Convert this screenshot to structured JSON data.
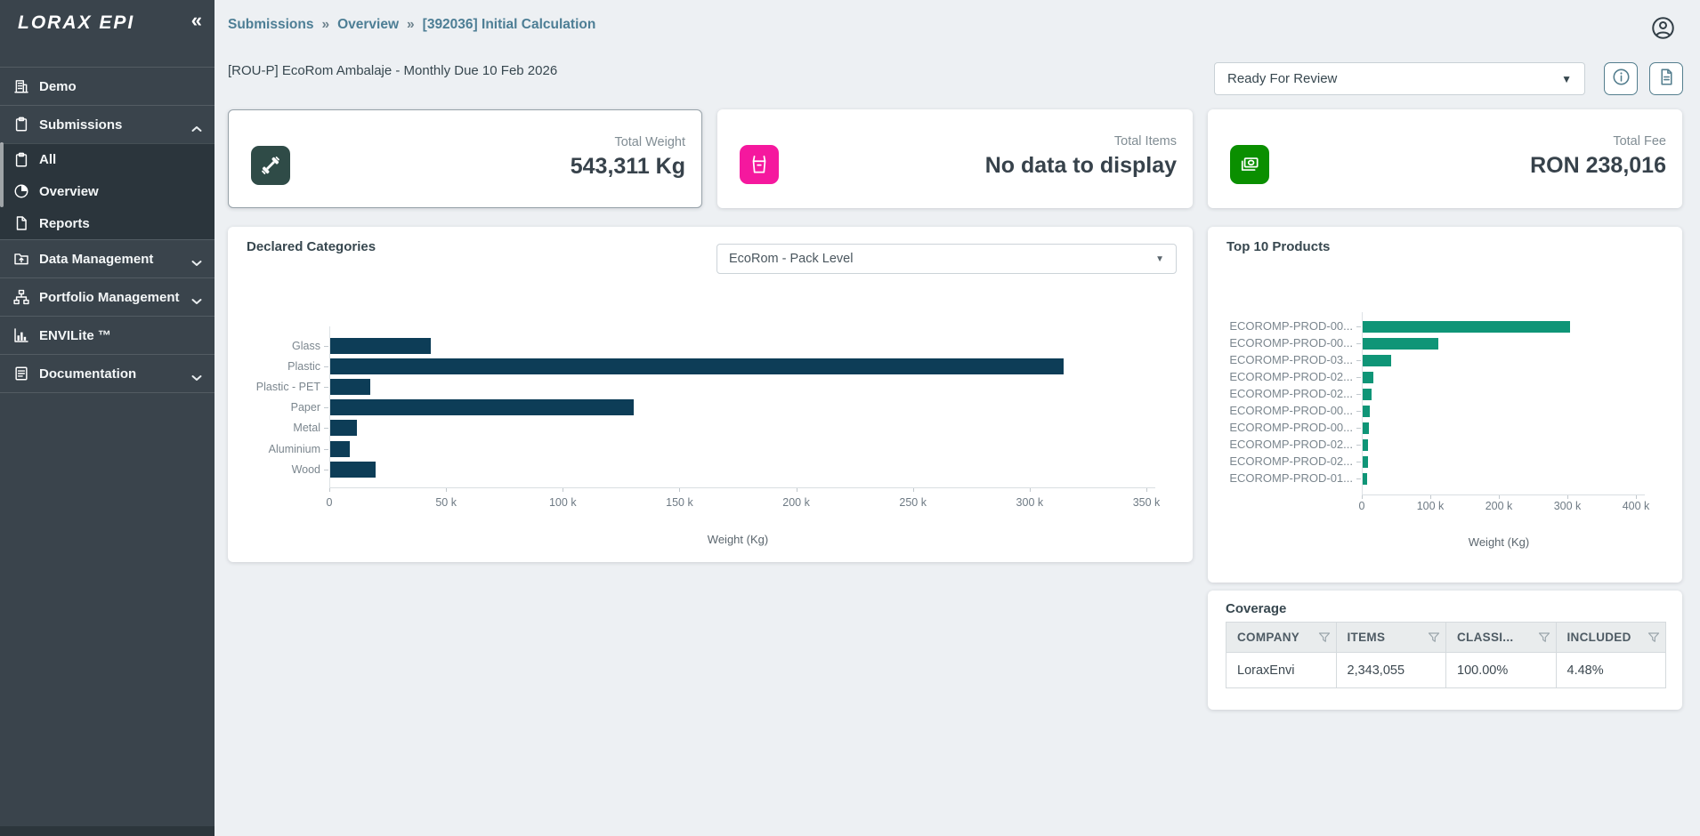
{
  "colors": {
    "page_bg": "#edf0f3",
    "sidebar_bg": "#3a444c",
    "sidebar_submenu_bg": "#2b353c",
    "breadcrumb_teal": "#4d7e95",
    "bar_navy": "#0d3d57",
    "bar_green": "#0f9577",
    "weight_icon_bg": "#2f4b47",
    "items_icon_bg": "#f5189e",
    "fee_icon_bg": "#0a8f00"
  },
  "sidebar": {
    "logo": "LORAX EPI",
    "collapse_glyph": "«",
    "items": [
      {
        "label": "Demo",
        "icon": "building-icon",
        "type": "main",
        "chevron": ""
      },
      {
        "label": "Submissions",
        "icon": "clipboard-icon",
        "type": "main",
        "chevron": "up"
      },
      {
        "label": "All",
        "icon": "clipboard-icon",
        "type": "sub",
        "chevron": ""
      },
      {
        "label": "Overview",
        "icon": "pie-chart-icon",
        "type": "sub",
        "chevron": ""
      },
      {
        "label": "Reports",
        "icon": "file-icon",
        "type": "sub",
        "chevron": ""
      },
      {
        "label": "Data Management",
        "icon": "folder-upload-icon",
        "type": "main",
        "chevron": "down"
      },
      {
        "label": "Portfolio Management",
        "icon": "sitemap-icon",
        "type": "main",
        "chevron": "down"
      },
      {
        "label": "ENVILite ™",
        "icon": "bar-chart-icon",
        "type": "main",
        "chevron": ""
      },
      {
        "label": "Documentation",
        "icon": "document-lines-icon",
        "type": "main",
        "chevron": "down"
      }
    ]
  },
  "header": {
    "breadcrumb": [
      "Submissions",
      "Overview",
      "[392036] Initial Calculation"
    ],
    "breadcrumb_separator": "»",
    "subtitle": "[ROU-P] EcoRom Ambalaje - Monthly Due 10 Feb 2026",
    "status_value": "Ready For Review",
    "user_icon": "user-circle-icon",
    "info_button_icon": "info-circle-icon",
    "report_button_icon": "file-text-icon"
  },
  "stat_cards": [
    {
      "label": "Total Weight",
      "value": "543,311 Kg",
      "icon": "weight-icon",
      "icon_bg": "#2f4b47",
      "selected": true
    },
    {
      "label": "Total Items",
      "value": "No data to display",
      "icon": "basket-icon",
      "icon_bg": "#f5189e",
      "selected": false
    },
    {
      "label": "Total Fee",
      "value": "RON 238,016",
      "icon": "banknote-icon",
      "icon_bg": "#0a8f00",
      "selected": false
    }
  ],
  "declared_panel": {
    "filter_value": "EcoRom - Pack Level"
  },
  "coverage": {
    "title": "Coverage",
    "columns": [
      "COMPANY",
      "ITEMS",
      "CLASSI...",
      "INCLUDED"
    ],
    "filter_icon": "funnel-icon",
    "rows": [
      [
        "LoraxEnvi",
        "2,343,055",
        "100.00%",
        "4.48%"
      ]
    ]
  },
  "chart_data": [
    {
      "type": "bar",
      "orientation": "horizontal",
      "title": "Declared Categories",
      "categories": [
        "Glass",
        "Plastic",
        "Plastic - PET",
        "Paper",
        "Metal",
        "Aluminium",
        "Wood"
      ],
      "values": [
        43000,
        314000,
        17000,
        130000,
        11500,
        8300,
        19500
      ],
      "xlabel": "Weight (Kg)",
      "xlim": [
        0,
        350000
      ],
      "xtick_values": [
        0,
        50000,
        100000,
        150000,
        200000,
        250000,
        300000,
        350000
      ],
      "xtick_labels": [
        "0",
        "50 k",
        "100 k",
        "150 k",
        "200 k",
        "250 k",
        "300 k",
        "350 k"
      ],
      "bar_color": "#0d3d57",
      "grid": false,
      "legend": false
    },
    {
      "type": "bar",
      "orientation": "horizontal",
      "title": "Top 10 Products",
      "categories": [
        "ECOROMP-PROD-00...",
        "ECOROMP-PROD-00...",
        "ECOROMP-PROD-03...",
        "ECOROMP-PROD-02...",
        "ECOROMP-PROD-02...",
        "ECOROMP-PROD-00...",
        "ECOROMP-PROD-00...",
        "ECOROMP-PROD-02...",
        "ECOROMP-PROD-02...",
        "ECOROMP-PROD-01..."
      ],
      "values": [
        303000,
        111000,
        41000,
        15000,
        13000,
        10000,
        8500,
        8000,
        7500,
        7000
      ],
      "xlabel": "Weight (Kg)",
      "xlim": [
        0,
        400000
      ],
      "xtick_values": [
        0,
        100000,
        200000,
        300000,
        400000
      ],
      "xtick_labels": [
        "0",
        "100 k",
        "200 k",
        "300 k",
        "400 k"
      ],
      "bar_color": "#0f9577",
      "grid": false,
      "legend": false
    }
  ]
}
